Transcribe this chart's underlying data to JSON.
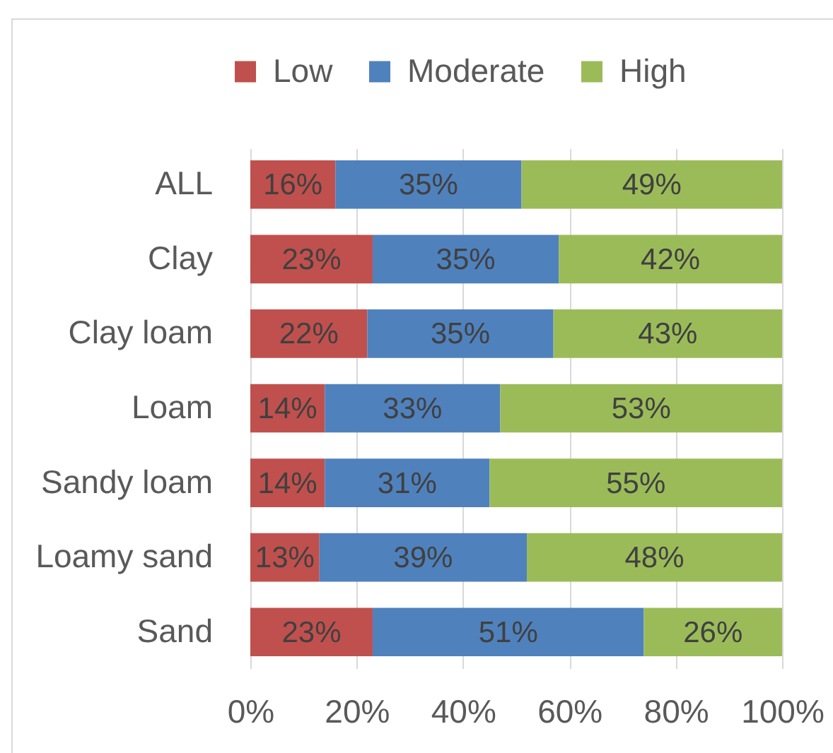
{
  "chart_data": {
    "type": "bar",
    "orientation": "horizontal",
    "stacked": true,
    "categories": [
      "ALL",
      "Clay",
      "Clay loam",
      "Loam",
      "Sandy loam",
      "Loamy sand",
      "Sand"
    ],
    "series": [
      {
        "name": "Low",
        "color": "#c0504d",
        "values": [
          16,
          23,
          22,
          14,
          14,
          13,
          23
        ],
        "value_labels": [
          "16%",
          "23%",
          "22%",
          "14%",
          "14%",
          "13%",
          "23%"
        ]
      },
      {
        "name": "Moderate",
        "color": "#4f81bd",
        "values": [
          35,
          35,
          35,
          33,
          31,
          39,
          51
        ],
        "value_labels": [
          "35%",
          "35%",
          "35%",
          "33%",
          "31%",
          "39%",
          "51%"
        ]
      },
      {
        "name": "High",
        "color": "#9bbb59",
        "values": [
          49,
          42,
          43,
          53,
          55,
          48,
          26
        ],
        "value_labels": [
          "49%",
          "42%",
          "43%",
          "53%",
          "55%",
          "48%",
          "26%"
        ]
      }
    ],
    "xlim": [
      0,
      100
    ],
    "xticks": [
      {
        "value": 0,
        "label": "0%"
      },
      {
        "value": 20,
        "label": "20%"
      },
      {
        "value": 40,
        "label": "40%"
      },
      {
        "value": 60,
        "label": "60%"
      },
      {
        "value": 80,
        "label": "80%"
      },
      {
        "value": 100,
        "label": "100%"
      }
    ],
    "grid": "x",
    "legend": "top"
  }
}
